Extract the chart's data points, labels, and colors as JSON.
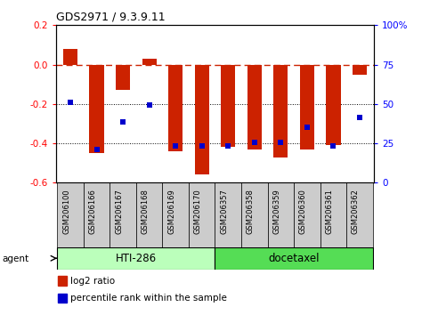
{
  "title": "GDS2971 / 9.3.9.11",
  "samples": [
    "GSM206100",
    "GSM206166",
    "GSM206167",
    "GSM206168",
    "GSM206169",
    "GSM206170",
    "GSM206357",
    "GSM206358",
    "GSM206359",
    "GSM206360",
    "GSM206361",
    "GSM206362"
  ],
  "log2_ratio": [
    0.08,
    -0.45,
    -0.13,
    0.03,
    -0.44,
    -0.56,
    -0.42,
    -0.43,
    -0.47,
    -0.43,
    -0.41,
    -0.05
  ],
  "percentile_y": [
    -0.19,
    -0.43,
    -0.29,
    -0.205,
    -0.415,
    -0.415,
    -0.415,
    -0.395,
    -0.395,
    -0.32,
    -0.415,
    -0.27
  ],
  "groups": [
    {
      "label": "HTI-286",
      "start": 0,
      "end": 5,
      "color": "#bbffbb"
    },
    {
      "label": "docetaxel",
      "start": 6,
      "end": 11,
      "color": "#55dd55"
    }
  ],
  "ylim": [
    -0.6,
    0.2
  ],
  "yticks_left": [
    -0.6,
    -0.4,
    -0.2,
    0.0,
    0.2
  ],
  "yticks_right_labels": [
    "0",
    "25",
    "50",
    "75",
    "100%"
  ],
  "yticks_right_y": [
    -0.6,
    -0.4,
    -0.2,
    0.0,
    0.2
  ],
  "bar_color": "#cc2200",
  "dot_color": "#0000cc",
  "legend_bar_label": "log2 ratio",
  "legend_dot_label": "percentile rank within the sample",
  "agent_label": "agent"
}
